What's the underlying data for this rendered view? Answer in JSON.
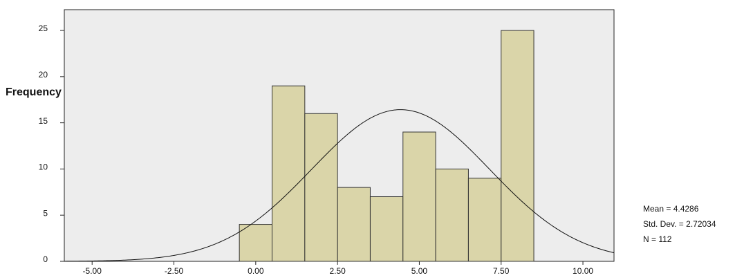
{
  "chart_data": {
    "type": "histogram",
    "y_label": "Frequency",
    "bins": [
      -0.5,
      0.5,
      1.5,
      2.5,
      3.5,
      4.5,
      5.5,
      6.5,
      7.5,
      8.5
    ],
    "values": [
      4,
      19,
      16,
      8,
      7,
      14,
      10,
      9,
      25
    ],
    "color": "#d6d09c",
    "edge_color": "#333333",
    "plot_background": "#ededed",
    "xlim": [
      -5.85,
      10.95
    ],
    "xticks": [
      {
        "value": -5,
        "label": "-5.00"
      },
      {
        "value": -2.5,
        "label": "-2.50"
      },
      {
        "value": 0,
        "label": "0.00"
      },
      {
        "value": 2.5,
        "label": "2.50"
      },
      {
        "value": 5,
        "label": "5.00"
      },
      {
        "value": 7.5,
        "label": "7.50"
      },
      {
        "value": 10,
        "label": "10.00"
      }
    ],
    "ylim": [
      0,
      27.25
    ],
    "yticks": [
      0,
      5,
      10,
      15,
      20,
      25
    ],
    "normal_curve": {
      "mean": 4.4286,
      "sd": 2.72034,
      "n": 112
    },
    "stats_labels": [
      "Mean = 4.4286",
      "Std. Dev. = 2.72034",
      "N = 112"
    ]
  }
}
